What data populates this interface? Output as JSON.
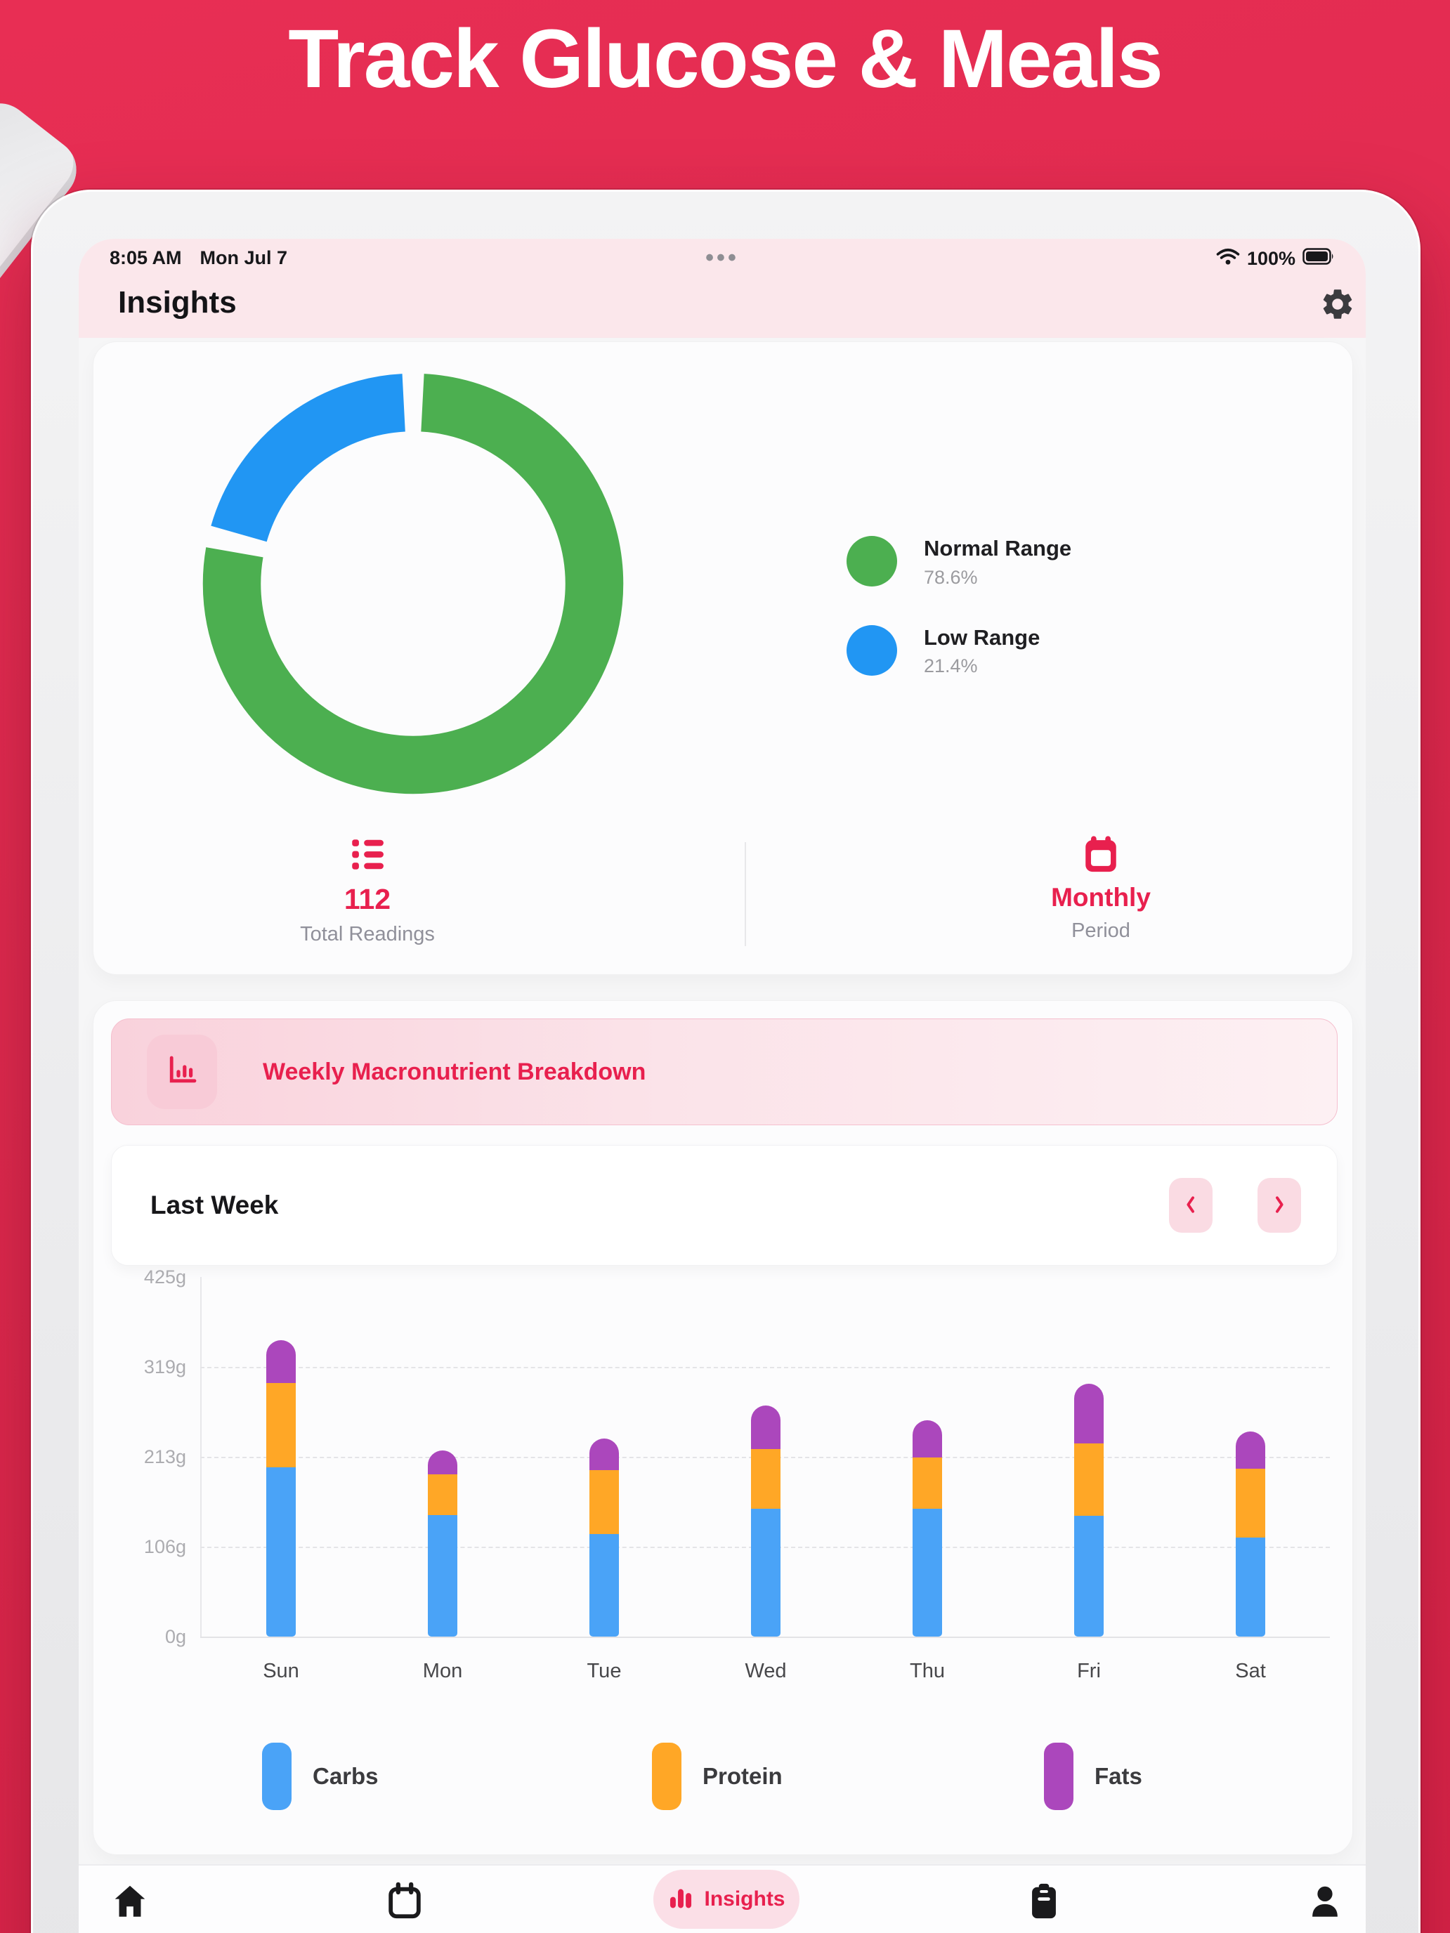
{
  "banner": {
    "title": "Track Glucose & Meals"
  },
  "status_bar": {
    "time": "8:05 AM",
    "date": "Mon Jul 7",
    "more": "•••",
    "battery": "100%"
  },
  "header": {
    "title": "Insights"
  },
  "glucose_card": {
    "legend": [
      {
        "label": "Normal Range",
        "value": "78.6%",
        "color": "#4CAF50"
      },
      {
        "label": "Low Range",
        "value": "21.4%",
        "color": "#2196F3"
      }
    ],
    "stats": [
      {
        "value": "112",
        "label": "Total Readings",
        "icon": "list-icon"
      },
      {
        "value": "Monthly",
        "label": "Period",
        "icon": "calendar-icon"
      }
    ]
  },
  "macro_card": {
    "title": "Weekly Macronutrient Breakdown",
    "week_label": "Last Week",
    "legend": [
      {
        "label": "Carbs",
        "color": "#4AA3F7"
      },
      {
        "label": "Protein",
        "color": "#FFA726"
      },
      {
        "label": "Fats",
        "color": "#AB47BC"
      }
    ]
  },
  "tab_bar": {
    "active_label": "Insights"
  },
  "colors": {
    "accent": "#E8204E",
    "banner_background": "#DE2A4E",
    "header_pink": "#FBE7EB",
    "donut_green": "#4CAF50",
    "donut_blue": "#2196F3"
  },
  "chart_data": [
    {
      "type": "pie",
      "donut": true,
      "title": "Glucose readings distribution",
      "slices": [
        {
          "label": "Normal Range",
          "value": 78.6,
          "color": "#4CAF50"
        },
        {
          "label": "Low Range",
          "value": 21.4,
          "color": "#2196F3"
        }
      ],
      "start_angle_deg": 0,
      "gap_between_slices": true,
      "legend_position": "right",
      "total_readings": 112,
      "period": "Monthly"
    },
    {
      "type": "bar",
      "stacked": true,
      "title": "Weekly Macronutrient Breakdown",
      "subtitle": "Last Week",
      "categories": [
        "Sun",
        "Mon",
        "Tue",
        "Wed",
        "Thu",
        "Fri",
        "Sat"
      ],
      "series": [
        {
          "name": "Carbs",
          "color": "#4AA3F7",
          "values": [
            200,
            144,
            121,
            151,
            151,
            143,
            117
          ]
        },
        {
          "name": "Protein",
          "color": "#FFA726",
          "values": [
            100,
            48,
            76,
            71,
            61,
            85,
            81
          ]
        },
        {
          "name": "Fats",
          "color": "#AB47BC",
          "values": [
            50,
            28,
            37,
            51,
            44,
            71,
            44
          ]
        }
      ],
      "ylabel": "grams",
      "ylim": [
        0,
        425
      ],
      "ytick_labels": [
        "0g",
        "106g",
        "213g",
        "319g",
        "425g"
      ],
      "grid": "dashed-horizontal",
      "legend_position": "bottom"
    }
  ]
}
